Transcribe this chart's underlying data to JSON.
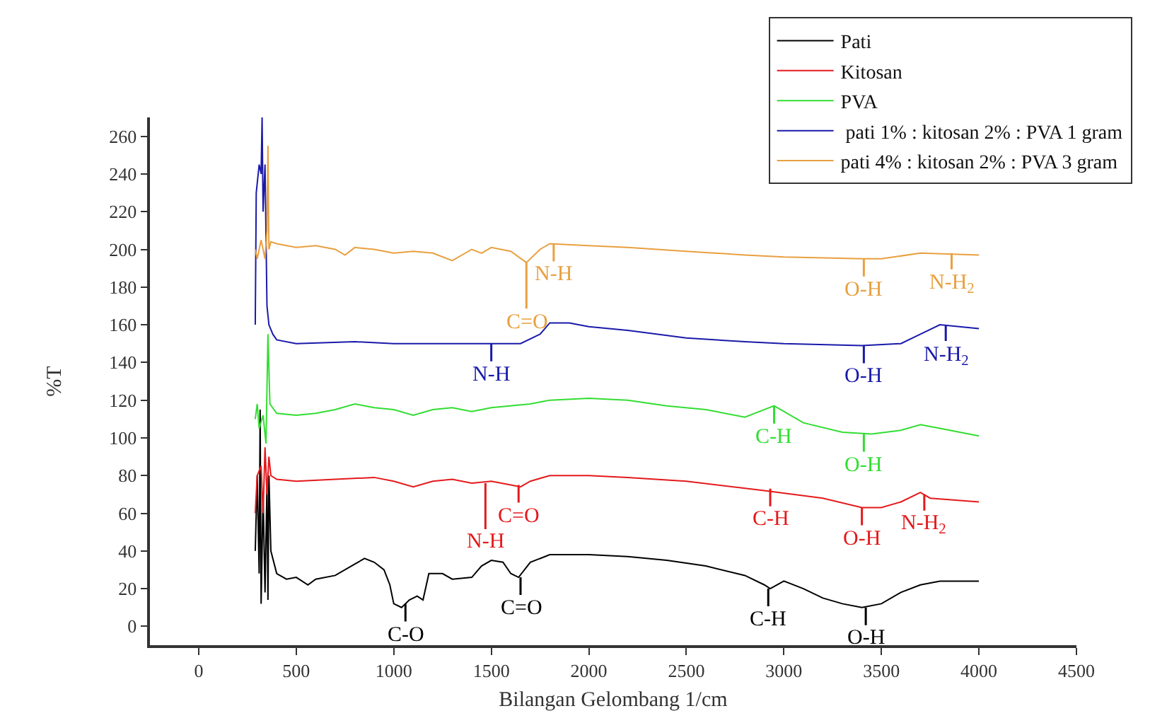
{
  "chart_data": {
    "type": "line",
    "xlabel": "Bilangan Gelombang 1/cm",
    "ylabel": "%T",
    "xlim": [
      -250,
      4500
    ],
    "xticks": [
      0,
      500,
      1000,
      1500,
      2000,
      2500,
      3000,
      3500,
      4000,
      4500
    ],
    "ylim": [
      -10,
      270
    ],
    "yticks": [
      0,
      20,
      40,
      60,
      80,
      100,
      120,
      140,
      160,
      180,
      200,
      220,
      240,
      260
    ],
    "legend": "top right",
    "marker": "none",
    "line_style": "solid",
    "series": [
      {
        "name": "Pati",
        "color": "#000000",
        "x": [
          290,
          300,
          310,
          315,
          320,
          330,
          340,
          350,
          355,
          360,
          370,
          400,
          450,
          500,
          560,
          600,
          700,
          800,
          850,
          900,
          950,
          980,
          1000,
          1040,
          1080,
          1120,
          1150,
          1180,
          1250,
          1300,
          1400,
          1450,
          1500,
          1560,
          1600,
          1640,
          1700,
          1800,
          2000,
          2200,
          2400,
          2600,
          2800,
          2900,
          2930,
          3000,
          3100,
          3200,
          3300,
          3400,
          3500,
          3600,
          3700,
          3800,
          4000
        ],
        "values": [
          40,
          80,
          28,
          115,
          12,
          70,
          18,
          75,
          14,
          80,
          40,
          28,
          25,
          26,
          22,
          25,
          27,
          33,
          36,
          34,
          30,
          22,
          12,
          10,
          14,
          16,
          14,
          28,
          28,
          25,
          26,
          32,
          35,
          34,
          28,
          26,
          34,
          38,
          38,
          37,
          35,
          32,
          27,
          22,
          20,
          24,
          20,
          15,
          12,
          10,
          12,
          18,
          22,
          24,
          24
        ]
      },
      {
        "name": "Kitosan",
        "color": "#e41a1c",
        "x": [
          290,
          300,
          320,
          330,
          340,
          350,
          360,
          370,
          400,
          500,
          700,
          900,
          1000,
          1100,
          1200,
          1300,
          1400,
          1500,
          1600,
          1650,
          1700,
          1800,
          2000,
          2200,
          2500,
          2900,
          3200,
          3400,
          3500,
          3600,
          3700,
          3750,
          4000
        ],
        "values": [
          60,
          80,
          85,
          60,
          95,
          70,
          90,
          80,
          78,
          77,
          78,
          79,
          77,
          74,
          77,
          78,
          76,
          77,
          75,
          74,
          77,
          80,
          80,
          79,
          77,
          72,
          68,
          63,
          63,
          66,
          71,
          68,
          66
        ]
      },
      {
        "name": "PVA",
        "color": "#33dd33",
        "x": [
          290,
          300,
          310,
          330,
          345,
          355,
          365,
          400,
          500,
          600,
          700,
          800,
          900,
          1000,
          1100,
          1200,
          1300,
          1400,
          1500,
          1700,
          1800,
          2000,
          2200,
          2400,
          2600,
          2800,
          2950,
          3100,
          3300,
          3450,
          3600,
          3700,
          3800,
          4000
        ],
        "values": [
          110,
          118,
          105,
          112,
          97,
          155,
          118,
          113,
          112,
          113,
          115,
          118,
          116,
          115,
          112,
          115,
          116,
          114,
          116,
          118,
          120,
          121,
          120,
          117,
          115,
          111,
          117,
          108,
          103,
          102,
          104,
          107,
          105,
          101
        ]
      },
      {
        "name": " pati 1% : kitosan 2% : PVA 1 gram",
        "color": "#1a1aaa",
        "x": [
          290,
          295,
          310,
          320,
          325,
          330,
          340,
          350,
          360,
          380,
          400,
          500,
          800,
          1000,
          1200,
          1500,
          1650,
          1750,
          1800,
          1900,
          2000,
          2200,
          2500,
          2800,
          3000,
          3400,
          3600,
          3700,
          3800,
          4000
        ],
        "values": [
          160,
          230,
          245,
          240,
          270,
          220,
          245,
          170,
          160,
          155,
          152,
          150,
          151,
          150,
          150,
          150,
          150,
          155,
          161,
          161,
          159,
          157,
          153,
          151,
          150,
          149,
          150,
          155,
          160,
          158
        ]
      },
      {
        "name": "pati 4% : kitosan 2% : PVA 3 gram",
        "color": "#e8a040",
        "x": [
          290,
          300,
          320,
          340,
          350,
          355,
          360,
          370,
          400,
          500,
          600,
          700,
          750,
          800,
          900,
          1000,
          1100,
          1200,
          1300,
          1400,
          1450,
          1500,
          1600,
          1680,
          1750,
          1800,
          2000,
          2200,
          2500,
          2800,
          3000,
          3400,
          3500,
          3700,
          4000
        ],
        "values": [
          200,
          195,
          205,
          195,
          210,
          255,
          200,
          204,
          203,
          201,
          202,
          200,
          197,
          201,
          200,
          198,
          199,
          198,
          194,
          200,
          198,
          201,
          199,
          193,
          200,
          203,
          202,
          201,
          199,
          197,
          196,
          195,
          195,
          198,
          197
        ]
      }
    ],
    "annotations": [
      {
        "text": "C=O",
        "x": 1680,
        "y": 193
      },
      {
        "text": "N-H",
        "x": 1820,
        "y": 203
      },
      {
        "text": "O-H",
        "x": 3410,
        "y": 195
      },
      {
        "text": "N-H$_{2}$",
        "x": 3860,
        "y": 198
      },
      {
        "text": "N-H",
        "x": 1500,
        "y": 150
      },
      {
        "text": "O-H",
        "x": 3410,
        "y": 149
      },
      {
        "text": "N-H$_{2}$",
        "x": 3830,
        "y": 160
      },
      {
        "text": "C-H",
        "x": 2950,
        "y": 117
      },
      {
        "text": "O-H",
        "x": 3410,
        "y": 102
      },
      {
        "text": "N-H",
        "x": 1470,
        "y": 76
      },
      {
        "text": "C=O",
        "x": 1640,
        "y": 75
      },
      {
        "text": "C-H",
        "x": 2930,
        "y": 73
      },
      {
        "text": "O-H",
        "x": 3400,
        "y": 63
      },
      {
        "text": "N-H$_{2}$",
        "x": 3720,
        "y": 70
      },
      {
        "text": "C-O",
        "x": 1060,
        "y": 12
      },
      {
        "text": "C=O",
        "x": 1650,
        "y": 26
      },
      {
        "text": "C-H",
        "x": 2920,
        "y": 20
      },
      {
        "text": "O-H",
        "x": 3420,
        "y": 10
      }
    ]
  }
}
